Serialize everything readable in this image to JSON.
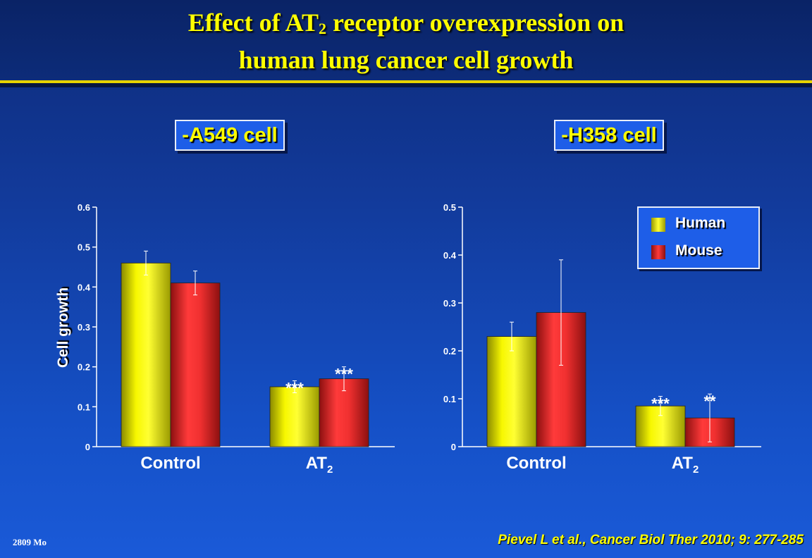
{
  "slide": {
    "title_line1_pre": "Effect of AT",
    "title_line1_sub": "2",
    "title_line1_post": " receptor overexpression on",
    "title_line2": "human lung cancer cell growth",
    "slide_id": "2809 Mo",
    "citation": "Pievel L et al., Cancer Biol Ther 2010; 9: 277-285"
  },
  "legend": {
    "items": [
      {
        "label": "Human",
        "color": "#f2f200"
      },
      {
        "label": "Mouse",
        "color": "#e83030"
      }
    ]
  },
  "chart_data": [
    {
      "type": "bar",
      "title": "-A549 cell",
      "xlabel": "",
      "ylabel": "Cell growth",
      "ylim": [
        0,
        0.6
      ],
      "yticks": [
        "0",
        "0.1",
        "0.2",
        "0.3",
        "0.4",
        "0.5",
        "0.6"
      ],
      "categories": [
        {
          "base": "Control",
          "sub": ""
        },
        {
          "base": "AT",
          "sub": "2"
        }
      ],
      "series": [
        {
          "name": "Human",
          "color": "#f2f200",
          "values": [
            0.46,
            0.15
          ],
          "errors": [
            0.03,
            0.015
          ],
          "significance": [
            "",
            "***"
          ]
        },
        {
          "name": "Mouse",
          "color": "#e83030",
          "values": [
            0.41,
            0.17
          ],
          "errors": [
            0.03,
            0.03
          ],
          "significance": [
            "",
            "***"
          ]
        }
      ]
    },
    {
      "type": "bar",
      "title": "-H358 cell",
      "xlabel": "",
      "ylabel": "",
      "ylim": [
        0,
        0.5
      ],
      "yticks": [
        "0",
        "0.1",
        "0.2",
        "0.3",
        "0.4",
        "0.5"
      ],
      "categories": [
        {
          "base": "Control",
          "sub": ""
        },
        {
          "base": "AT",
          "sub": "2"
        }
      ],
      "series": [
        {
          "name": "Human",
          "color": "#f2f200",
          "values": [
            0.23,
            0.085
          ],
          "errors": [
            0.03,
            0.02
          ],
          "significance": [
            "",
            "***"
          ]
        },
        {
          "name": "Mouse",
          "color": "#e83030",
          "values": [
            0.28,
            0.06
          ],
          "errors": [
            0.11,
            0.05
          ],
          "significance": [
            "",
            "**"
          ]
        }
      ]
    }
  ]
}
